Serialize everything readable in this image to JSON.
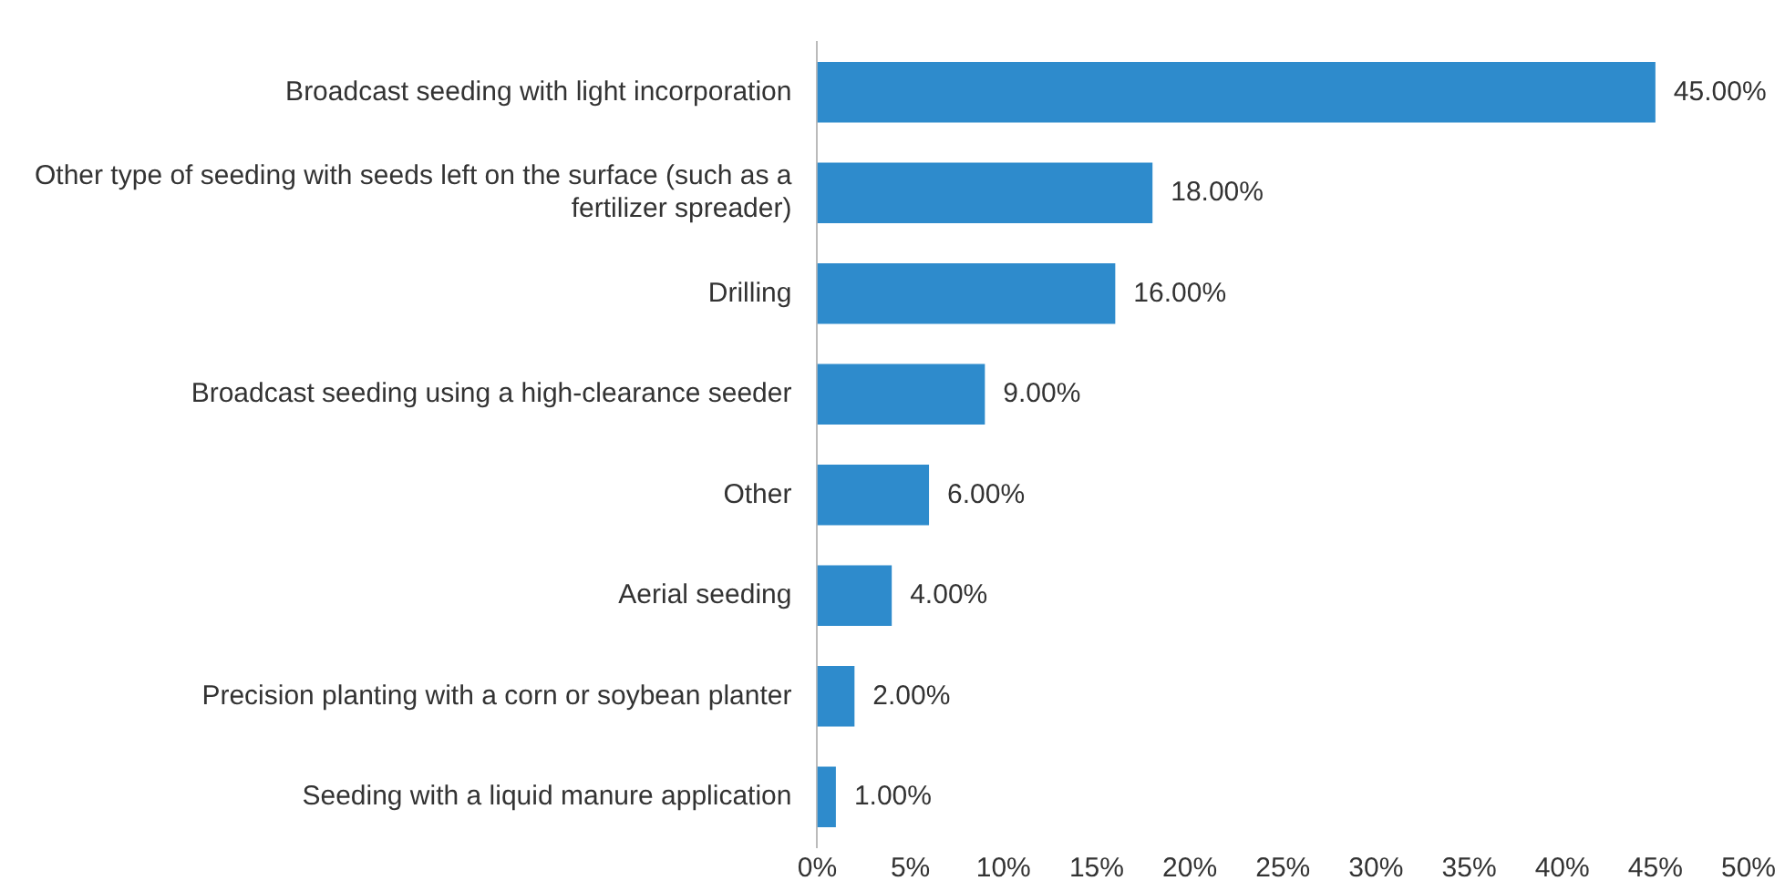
{
  "chart_data": {
    "type": "bar",
    "orientation": "horizontal",
    "categories": [
      "Broadcast seeding with light incorporation",
      "Other type of seeding with seeds left on the surface (such as a fertilizer spreader)",
      "Drilling",
      "Broadcast seeding using a high-clearance seeder",
      "Other",
      "Aerial seeding",
      "Precision planting with a corn or soybean planter",
      "Seeding with a liquid manure application"
    ],
    "values": [
      45,
      18,
      16,
      9,
      6,
      4,
      2,
      1
    ],
    "value_labels": [
      "45.00%",
      "18.00%",
      "16.00%",
      "9.00%",
      "6.00%",
      "4.00%",
      "2.00%",
      "1.00%"
    ],
    "color": "#2e8bcc",
    "xlim": [
      0,
      50
    ],
    "xticks": [
      {
        "value": 0,
        "label": "0%"
      },
      {
        "value": 5,
        "label": "5%"
      },
      {
        "value": 10,
        "label": "10%"
      },
      {
        "value": 15,
        "label": "15%"
      },
      {
        "value": 20,
        "label": "20%"
      },
      {
        "value": 25,
        "label": "25%"
      },
      {
        "value": 30,
        "label": "30%"
      },
      {
        "value": 35,
        "label": "35%"
      },
      {
        "value": 40,
        "label": "40%"
      },
      {
        "value": 45,
        "label": "45%"
      },
      {
        "value": 50,
        "label": "50%"
      }
    ],
    "grid": false,
    "legend": false
  }
}
